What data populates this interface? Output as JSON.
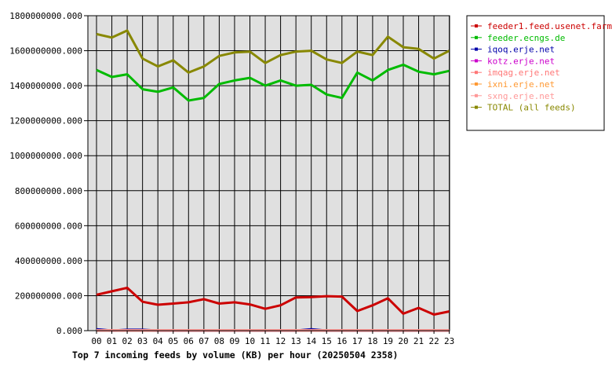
{
  "chart_data": {
    "type": "line",
    "title": "Top 7 incoming feeds by volume (KB) per hour (20250504 2358)",
    "xlabel": "",
    "ylabel": "",
    "categories": [
      "00",
      "01",
      "02",
      "03",
      "04",
      "05",
      "06",
      "07",
      "08",
      "09",
      "10",
      "11",
      "12",
      "13",
      "14",
      "15",
      "16",
      "17",
      "18",
      "19",
      "20",
      "21",
      "22",
      "23"
    ],
    "yticks": [
      "0.000",
      "200000000.000",
      "400000000.000",
      "600000000.000",
      "800000000.000",
      "1000000000.000",
      "1200000000.000",
      "1400000000.000",
      "1600000000.000",
      "1800000000.000"
    ],
    "ylim": [
      0,
      1800000000
    ],
    "grid": true,
    "legend_position": "right",
    "series": [
      {
        "name": "feeder1.feed.usenet.farm",
        "color": "#cc0000",
        "values": [
          205000000,
          225000000,
          245000000,
          165000000,
          148000000,
          155000000,
          162000000,
          180000000,
          155000000,
          162000000,
          150000000,
          125000000,
          145000000,
          190000000,
          192000000,
          197000000,
          195000000,
          112000000,
          145000000,
          185000000,
          97000000,
          130000000,
          92000000,
          110000000
        ]
      },
      {
        "name": "feeder.ecngs.de",
        "color": "#00bb00",
        "values": [
          1490000000,
          1450000000,
          1465000000,
          1380000000,
          1365000000,
          1390000000,
          1315000000,
          1330000000,
          1410000000,
          1430000000,
          1445000000,
          1400000000,
          1430000000,
          1400000000,
          1405000000,
          1350000000,
          1330000000,
          1475000000,
          1430000000,
          1490000000,
          1520000000,
          1480000000,
          1465000000,
          1485000000
        ]
      },
      {
        "name": "iqoq.erje.net",
        "color": "#0000aa",
        "values": [
          8000000,
          0,
          5000000,
          5000000,
          0,
          0,
          0,
          0,
          0,
          0,
          0,
          0,
          0,
          0,
          8000000,
          0,
          0,
          0,
          0,
          0,
          0,
          0,
          0,
          0
        ]
      },
      {
        "name": "kotz.erje.net",
        "color": "#cc00cc",
        "values": [
          1000000,
          1000000,
          1000000,
          1000000,
          1000000,
          1000000,
          1000000,
          1000000,
          1000000,
          1000000,
          1000000,
          1000000,
          1000000,
          1000000,
          1000000,
          1000000,
          1000000,
          1000000,
          1000000,
          1000000,
          1000000,
          1000000,
          1000000,
          1000000
        ]
      },
      {
        "name": "imqag.erje.net",
        "color": "#ff7777",
        "values": [
          2000000,
          2000000,
          2000000,
          2000000,
          2000000,
          2000000,
          2000000,
          2000000,
          2000000,
          2000000,
          2000000,
          2000000,
          2000000,
          2000000,
          2000000,
          2000000,
          2000000,
          2000000,
          2000000,
          2000000,
          2000000,
          2000000,
          2000000,
          2000000
        ]
      },
      {
        "name": "ixni.erje.net",
        "color": "#ff9933",
        "values": [
          1000000,
          1000000,
          1000000,
          1000000,
          1000000,
          1000000,
          1000000,
          1000000,
          1000000,
          1000000,
          1000000,
          1000000,
          1000000,
          1000000,
          1000000,
          1000000,
          1000000,
          1000000,
          1000000,
          1000000,
          1000000,
          1000000,
          1000000,
          1000000
        ]
      },
      {
        "name": "sxng.erje.net",
        "color": "#ff9999",
        "values": [
          2000000,
          2000000,
          2000000,
          2000000,
          2000000,
          2000000,
          2000000,
          2000000,
          2000000,
          2000000,
          2000000,
          2000000,
          2000000,
          2000000,
          2000000,
          2000000,
          2000000,
          2000000,
          2000000,
          2000000,
          2000000,
          2000000,
          2000000,
          2000000
        ]
      },
      {
        "name": "TOTAL (all feeds)",
        "color": "#888800",
        "values": [
          1695000000,
          1675000000,
          1715000000,
          1555000000,
          1510000000,
          1545000000,
          1475000000,
          1510000000,
          1570000000,
          1590000000,
          1595000000,
          1530000000,
          1575000000,
          1595000000,
          1600000000,
          1550000000,
          1530000000,
          1595000000,
          1575000000,
          1680000000,
          1620000000,
          1610000000,
          1555000000,
          1600000000
        ]
      }
    ]
  }
}
